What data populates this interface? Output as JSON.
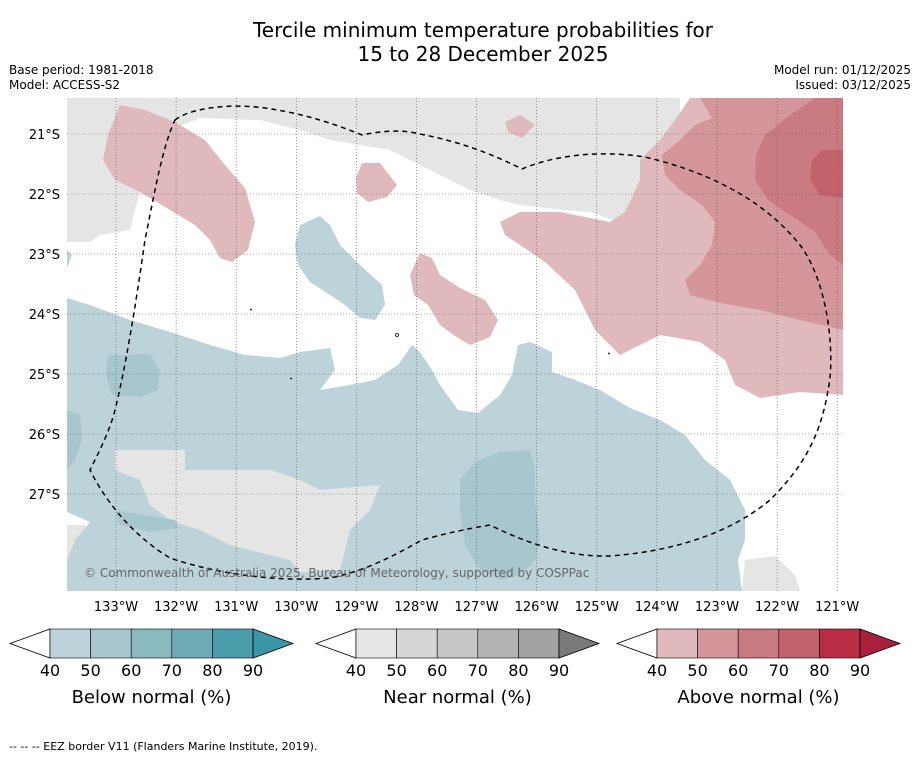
{
  "title_line1": "Tercile minimum temperature probabilities for",
  "title_line2": "15 to 28 December 2025",
  "meta_left": {
    "base_period": "Base period: 1981-2018",
    "model": "Model: ACCESS-S2"
  },
  "meta_right": {
    "model_run": "Model run: 01/12/2025",
    "issued": "Issued: 03/12/2025"
  },
  "map": {
    "lat_labels": [
      "21°S",
      "22°S",
      "23°S",
      "24°S",
      "25°S",
      "26°S",
      "27°S"
    ],
    "lon_labels": [
      "133°W",
      "132°W",
      "131°W",
      "130°W",
      "129°W",
      "128°W",
      "127°W",
      "126°W",
      "125°W",
      "124°W",
      "123°W",
      "122°W",
      "121°W"
    ],
    "copyright": "© Commonwealth of Australia 2025, Bureau of Meteorology, supported by COSPPac"
  },
  "colorbars": [
    {
      "label": "Below normal (%)",
      "ticks": [
        "40",
        "50",
        "60",
        "70",
        "80",
        "90"
      ],
      "colors": [
        "#bdd3da",
        "#a7c7cd",
        "#8bb9c0",
        "#6eabb6",
        "#4c9dab",
        "#3a96a6"
      ]
    },
    {
      "label": "Near normal (%)",
      "ticks": [
        "40",
        "50",
        "60",
        "70",
        "80",
        "90"
      ],
      "colors": [
        "#e5e5e5",
        "#d6d6d6",
        "#c6c6c6",
        "#b2b2b2",
        "#a2a2a2",
        "#7a7a7a"
      ]
    },
    {
      "label": "Above normal (%)",
      "ticks": [
        "40",
        "50",
        "60",
        "70",
        "80",
        "90"
      ],
      "colors": [
        "#e0b9bd",
        "#d4969b",
        "#ca7b82",
        "#c4626c",
        "#b92e45",
        "#a8203a"
      ]
    }
  ],
  "footer": "--  --  -- EEZ border V11 (Flanders Marine Institute, 2019)."
}
